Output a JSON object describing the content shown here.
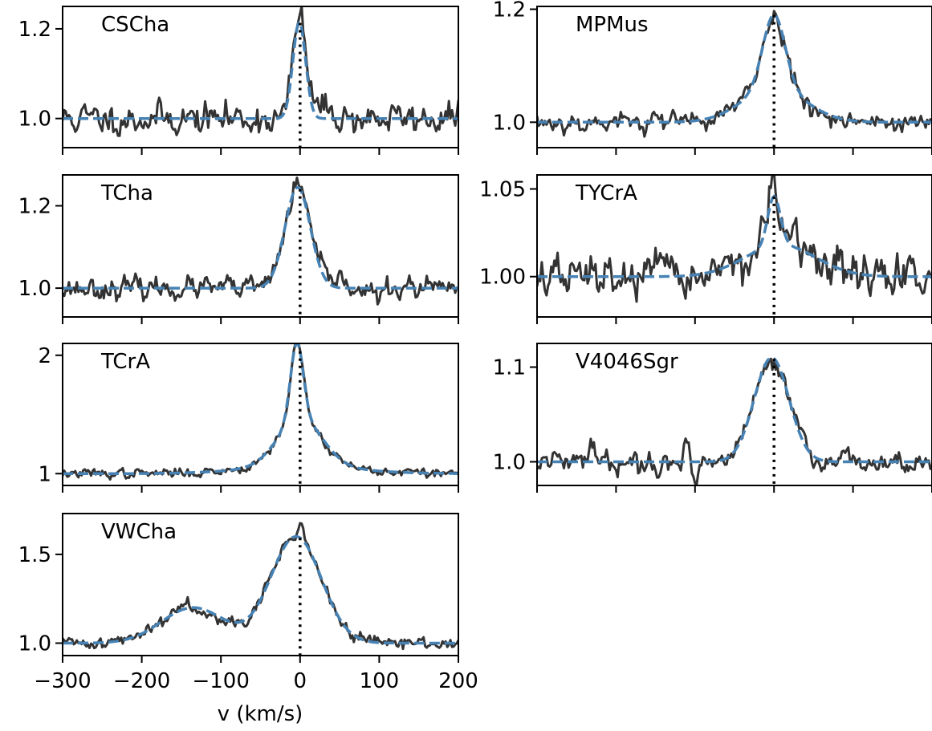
{
  "chart_data": {
    "type": "line",
    "xlabel": "v (km/s)",
    "xlim": [
      -300,
      200
    ],
    "x_ticks": [
      -300,
      -200,
      -100,
      0,
      100,
      200
    ],
    "x_tick_labels": [
      "−300",
      "−200",
      "−100",
      "0",
      "100",
      "200"
    ],
    "colors": {
      "observed": "#333333",
      "model": "#4682b4",
      "reference": "#000000"
    },
    "panels": [
      {
        "label": "CSCha",
        "ylim": [
          0.935,
          1.25
        ],
        "y_ticks": [
          1.0,
          1.2
        ],
        "y_tick_labels": [
          "1.0",
          "1.2"
        ],
        "model": [
          {
            "amp": 0.215,
            "center": -1,
            "sigma": 8
          }
        ],
        "observed_noise": 0.016,
        "observed_extra": [
          {
            "amp": 0.025,
            "center": 20,
            "sigma": 18
          }
        ],
        "seed": 11
      },
      {
        "label": "TCha",
        "ylim": [
          0.93,
          1.275
        ],
        "y_ticks": [
          1.0,
          1.2
        ],
        "y_tick_labels": [
          "1.0",
          "1.2"
        ],
        "model": [
          {
            "amp": 0.245,
            "center": -3,
            "sigma": 16
          }
        ],
        "observed_noise": 0.012,
        "observed_extra": [
          {
            "amp": 0.02,
            "center": 50,
            "sigma": 12
          },
          {
            "amp": -0.02,
            "center": 95,
            "sigma": 10
          }
        ],
        "seed": 23
      },
      {
        "label": "TCrA",
        "ylim": [
          0.9,
          2.1
        ],
        "y_ticks": [
          1,
          2
        ],
        "y_tick_labels": [
          "1",
          "2"
        ],
        "model": [
          {
            "amp": 0.65,
            "center": -4,
            "sigma": 8
          },
          {
            "amp": 0.4,
            "center": 0,
            "sigma": 28
          },
          {
            "amp": 0.06,
            "center": 0,
            "sigma": 70
          }
        ],
        "observed_noise": 0.018,
        "observed_extra": [],
        "seed": 37
      },
      {
        "label": "VWCha",
        "ylim": [
          0.93,
          1.73
        ],
        "y_ticks": [
          1.0,
          1.5
        ],
        "y_tick_labels": [
          "1.0",
          "1.5"
        ],
        "model": [
          {
            "amp": 0.6,
            "center": -5,
            "sigma": 32
          },
          {
            "amp": 0.2,
            "center": -135,
            "sigma": 40
          }
        ],
        "observed_noise": 0.016,
        "observed_extra": [
          {
            "amp": 0.06,
            "center": 0,
            "sigma": 5
          },
          {
            "amp": 0.04,
            "center": -150,
            "sigma": 8
          }
        ],
        "seed": 41
      },
      {
        "label": "MPMus",
        "ylim": [
          0.955,
          1.205
        ],
        "y_ticks": [
          1.0,
          1.2
        ],
        "y_tick_labels": [
          "1.0",
          "1.2"
        ],
        "model": [
          {
            "amp": 0.13,
            "center": 0,
            "sigma": 14
          },
          {
            "amp": 0.06,
            "center": 0,
            "sigma": 40
          }
        ],
        "observed_noise": 0.008,
        "observed_extra": [
          {
            "amp": 0.03,
            "center": -152,
            "sigma": 3
          }
        ],
        "seed": 53
      },
      {
        "label": "TYCrA",
        "ylim": [
          0.977,
          1.058
        ],
        "y_ticks": [
          1.0,
          1.05
        ],
        "y_tick_labels": [
          "1.00",
          "1.05"
        ],
        "model": [
          {
            "amp": 0.028,
            "center": 0,
            "sigma": 8
          },
          {
            "amp": 0.018,
            "center": 8,
            "sigma": 45
          }
        ],
        "observed_noise": 0.0055,
        "observed_extra": [],
        "seed": 67
      },
      {
        "label": "V4046Sgr",
        "ylim": [
          0.975,
          1.125
        ],
        "y_ticks": [
          1.0,
          1.1
        ],
        "y_tick_labels": [
          "1.0",
          "1.1"
        ],
        "model": [
          {
            "amp": 0.11,
            "center": -3,
            "sigma": 22
          }
        ],
        "observed_noise": 0.005,
        "observed_extra": [
          {
            "amp": 0.022,
            "center": -230,
            "sigma": 3
          },
          {
            "amp": 0.022,
            "center": -110,
            "sigma": 3
          },
          {
            "amp": -0.018,
            "center": -100,
            "sigma": 3
          }
        ],
        "seed": 79
      }
    ]
  }
}
